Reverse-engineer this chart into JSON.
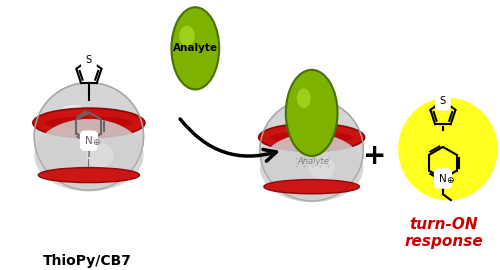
{
  "bg_color": "#ffffff",
  "analyte_color": "#7db300",
  "analyte_label": "Analyte",
  "cb7_body_color": "#d8d8d8",
  "cb7_ring_color": "#cc0000",
  "arrow_color": "#000000",
  "plus_color": "#000000",
  "label_thiopy": "ThioPy/CB7",
  "label_turnon_line1": "turn-ON",
  "label_turnon_line2": "response",
  "turnon_color": "#cc0000",
  "glow_color": "#ffff00",
  "fig_width": 5.0,
  "fig_height": 2.7,
  "dpi": 100
}
